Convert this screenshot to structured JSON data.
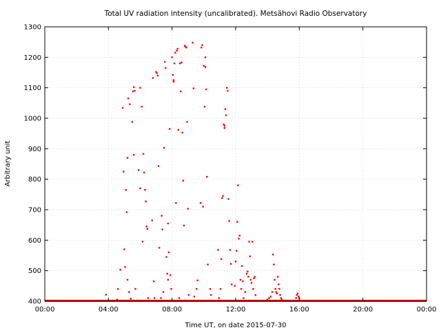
{
  "chart_data": {
    "type": "scatter",
    "title": "Total UV radiation intensity (uncalibrated). Metsähovi Radio Observatory",
    "xlabel": "Time UT, on date 2015-07-30",
    "ylabel": "Arbitrary unit",
    "xlim": [
      0,
      24
    ],
    "ylim": [
      400,
      1300
    ],
    "x_ticks": [
      0,
      4,
      8,
      12,
      16,
      20,
      24
    ],
    "x_tick_labels": [
      "00:00",
      "04:00",
      "08:00",
      "12:00",
      "16:00",
      "20:00",
      "00:00"
    ],
    "y_ticks": [
      400,
      500,
      600,
      700,
      800,
      900,
      1000,
      1100,
      1200,
      1300
    ],
    "y_tick_labels": [
      "400",
      "500",
      "600",
      "700",
      "800",
      "900",
      "1000",
      "1100",
      "1200",
      "1300"
    ],
    "grid": true,
    "marker_color": "#ff0000",
    "series": [
      {
        "baseline": {
          "y": 400,
          "x_range": [
            0,
            24
          ]
        },
        "points": [
          [
            3.85,
            421
          ],
          [
            4.55,
            405
          ],
          [
            4.6,
            440
          ],
          [
            4.75,
            503
          ],
          [
            4.9,
            1034
          ],
          [
            4.95,
            825
          ],
          [
            5.0,
            570
          ],
          [
            5.05,
            512
          ],
          [
            5.1,
            765
          ],
          [
            5.15,
            692
          ],
          [
            5.2,
            470
          ],
          [
            5.2,
            870
          ],
          [
            5.25,
            1065
          ],
          [
            5.3,
            430
          ],
          [
            5.35,
            1046
          ],
          [
            5.4,
            408
          ],
          [
            5.5,
            988
          ],
          [
            5.55,
            1088
          ],
          [
            5.6,
            1102
          ],
          [
            5.6,
            880
          ],
          [
            5.65,
            1090
          ],
          [
            5.7,
            440
          ],
          [
            5.9,
            830
          ],
          [
            6.0,
            1100
          ],
          [
            6.0,
            770
          ],
          [
            6.1,
            1038
          ],
          [
            6.15,
            595
          ],
          [
            6.2,
            883
          ],
          [
            6.25,
            822
          ],
          [
            6.3,
            765
          ],
          [
            6.35,
            727
          ],
          [
            6.4,
            645
          ],
          [
            6.45,
            637
          ],
          [
            6.5,
            410
          ],
          [
            6.75,
            665
          ],
          [
            6.8,
            1132
          ],
          [
            6.85,
            465
          ],
          [
            6.9,
            410
          ],
          [
            7.0,
            1152
          ],
          [
            7.05,
            1148
          ],
          [
            7.1,
            1140
          ],
          [
            7.15,
            843
          ],
          [
            7.2,
            575
          ],
          [
            7.3,
            410
          ],
          [
            7.35,
            680
          ],
          [
            7.4,
            635
          ],
          [
            7.45,
            430
          ],
          [
            7.5,
            903
          ],
          [
            7.55,
            1185
          ],
          [
            7.6,
            1165
          ],
          [
            7.65,
            545
          ],
          [
            7.7,
            490
          ],
          [
            7.75,
            470
          ],
          [
            7.75,
            655
          ],
          [
            7.8,
            560
          ],
          [
            7.85,
            965
          ],
          [
            7.9,
            485
          ],
          [
            7.95,
            440
          ],
          [
            8.0,
            1200
          ],
          [
            8.05,
            1142
          ],
          [
            8.1,
            1125
          ],
          [
            8.1,
            1120
          ],
          [
            8.15,
            1180
          ],
          [
            8.2,
            1215
          ],
          [
            8.25,
            722
          ],
          [
            8.3,
            1222
          ],
          [
            8.35,
            1228
          ],
          [
            8.4,
            962
          ],
          [
            8.45,
            410
          ],
          [
            8.5,
            1180
          ],
          [
            8.55,
            1088
          ],
          [
            8.6,
            1183
          ],
          [
            8.65,
            953
          ],
          [
            8.7,
            795
          ],
          [
            8.75,
            648
          ],
          [
            8.8,
            1238
          ],
          [
            8.85,
            1235
          ],
          [
            8.9,
            1232
          ],
          [
            8.95,
            988
          ],
          [
            9.0,
            703
          ],
          [
            9.05,
            420
          ],
          [
            9.3,
            1248
          ],
          [
            9.35,
            1098
          ],
          [
            9.4,
            415
          ],
          [
            9.55,
            440
          ],
          [
            9.6,
            468
          ],
          [
            9.8,
            722
          ],
          [
            9.85,
            1232
          ],
          [
            9.9,
            1240
          ],
          [
            9.95,
            710
          ],
          [
            10.0,
            1172
          ],
          [
            10.05,
            1038
          ],
          [
            10.1,
            1200
          ],
          [
            10.1,
            1168
          ],
          [
            10.15,
            1095
          ],
          [
            10.2,
            808
          ],
          [
            10.25,
            520
          ],
          [
            10.4,
            440
          ],
          [
            10.45,
            420
          ],
          [
            10.9,
            568
          ],
          [
            10.95,
            410
          ],
          [
            11.05,
            440
          ],
          [
            11.1,
            538
          ],
          [
            11.15,
            738
          ],
          [
            11.2,
            745
          ],
          [
            11.25,
            980
          ],
          [
            11.3,
            975
          ],
          [
            11.3,
            968
          ],
          [
            11.35,
            1030
          ],
          [
            11.4,
            1010
          ],
          [
            11.45,
            1100
          ],
          [
            11.5,
            1090
          ],
          [
            11.55,
            735
          ],
          [
            11.6,
            663
          ],
          [
            11.65,
            568
          ],
          [
            11.7,
            522
          ],
          [
            11.75,
            455
          ],
          [
            11.95,
            450
          ],
          [
            12.0,
            530
          ],
          [
            12.05,
            565
          ],
          [
            12.1,
            660
          ],
          [
            12.15,
            780
          ],
          [
            12.2,
            605
          ],
          [
            12.25,
            615
          ],
          [
            12.3,
            470
          ],
          [
            12.35,
            440
          ],
          [
            12.4,
            515
          ],
          [
            12.45,
            465
          ],
          [
            12.5,
            410
          ],
          [
            12.6,
            430
          ],
          [
            12.7,
            490
          ],
          [
            12.75,
            497
          ],
          [
            12.8,
            480
          ],
          [
            12.85,
            595
          ],
          [
            12.9,
            547
          ],
          [
            12.95,
            470
          ],
          [
            13.0,
            460
          ],
          [
            13.05,
            595
          ],
          [
            13.1,
            440
          ],
          [
            13.15,
            475
          ],
          [
            13.2,
            480
          ],
          [
            13.25,
            420
          ],
          [
            14.0,
            405
          ],
          [
            14.1,
            410
          ],
          [
            14.2,
            415
          ],
          [
            14.3,
            430
          ],
          [
            14.35,
            553
          ],
          [
            14.4,
            520
          ],
          [
            14.45,
            470
          ],
          [
            14.5,
            440
          ],
          [
            14.55,
            430
          ],
          [
            14.6,
            425
          ],
          [
            14.65,
            480
          ],
          [
            14.7,
            455
          ],
          [
            14.75,
            440
          ],
          [
            14.8,
            420
          ],
          [
            14.85,
            410
          ],
          [
            14.9,
            405
          ],
          [
            15.8,
            410
          ],
          [
            15.85,
            420
          ],
          [
            15.9,
            425
          ],
          [
            15.95,
            415
          ],
          [
            16.0,
            410
          ]
        ]
      }
    ]
  }
}
